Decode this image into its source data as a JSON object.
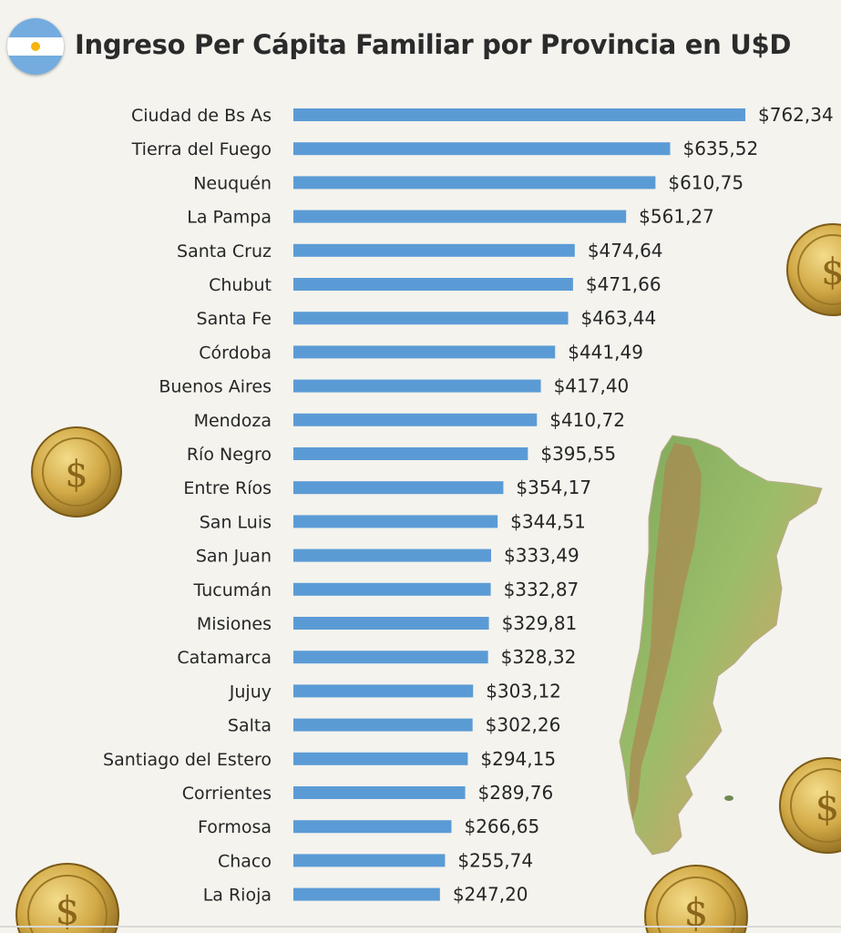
{
  "title": "Ingreso Per Cápita Familiar por Provincia en U$D",
  "colors": {
    "bar": "#5b9bd5",
    "text": "#262626",
    "background": "#f4f3ee"
  },
  "chart_data": {
    "type": "bar",
    "orientation": "horizontal",
    "title": "Ingreso Per Cápita Familiar por Provincia en U$D",
    "xlabel": "",
    "ylabel": "",
    "xlim": [
      0,
      762.34
    ],
    "grid": false,
    "legend": "none",
    "categories": [
      "Ciudad de Bs As",
      "Tierra del Fuego",
      "Neuquén",
      "La Pampa",
      "Santa Cruz",
      "Chubut",
      "Santa Fe",
      "Córdoba",
      "Buenos Aires",
      "Mendoza",
      "Río Negro",
      "Entre Ríos",
      "San Luis",
      "San Juan",
      "Tucumán",
      "Misiones",
      "Catamarca",
      "Jujuy",
      "Salta",
      "Santiago del Estero",
      "Corrientes",
      "Formosa",
      "Chaco",
      "La Rioja"
    ],
    "values": [
      762.34,
      635.52,
      610.75,
      561.27,
      474.64,
      471.66,
      463.44,
      441.49,
      417.4,
      410.72,
      395.55,
      354.17,
      344.51,
      333.49,
      332.87,
      329.81,
      328.32,
      303.12,
      302.26,
      294.15,
      289.76,
      266.65,
      255.74,
      247.2
    ],
    "value_labels": [
      "$762,34",
      "$635,52",
      "$610,75",
      "$561,27",
      "$474,64",
      "$471,66",
      "$463,44",
      "$441,49",
      "$417,40",
      "$410,72",
      "$395,55",
      "$354,17",
      "$344,51",
      "$333,49",
      "$332,87",
      "$329,81",
      "$328,32",
      "$303,12",
      "$302,26",
      "$294,15",
      "$289,76",
      "$266,65",
      "$255,74",
      "$247,20"
    ]
  }
}
